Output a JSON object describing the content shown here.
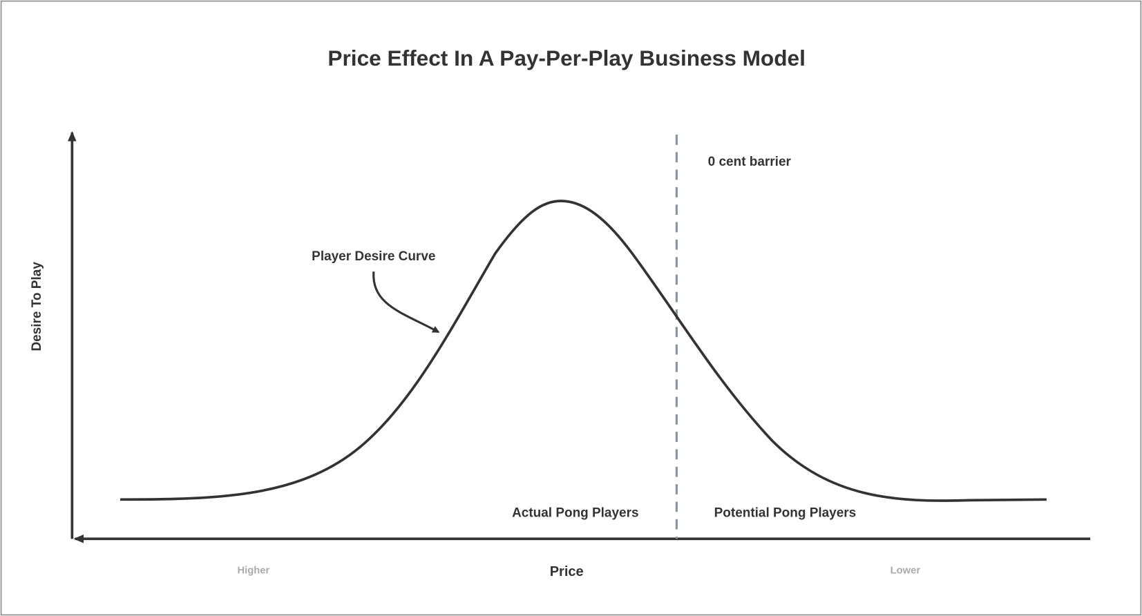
{
  "title": "Price Effect In A Pay-Per-Play Business Model",
  "axes": {
    "y_label": "Desire To Play",
    "x_label": "Price",
    "x_left": "Higher",
    "x_right": "Lower"
  },
  "annotations": {
    "barrier": "0 cent barrier",
    "curve": "Player Desire Curve",
    "actual": "Actual Pong Players",
    "potential": "Potential Pong Players"
  }
}
